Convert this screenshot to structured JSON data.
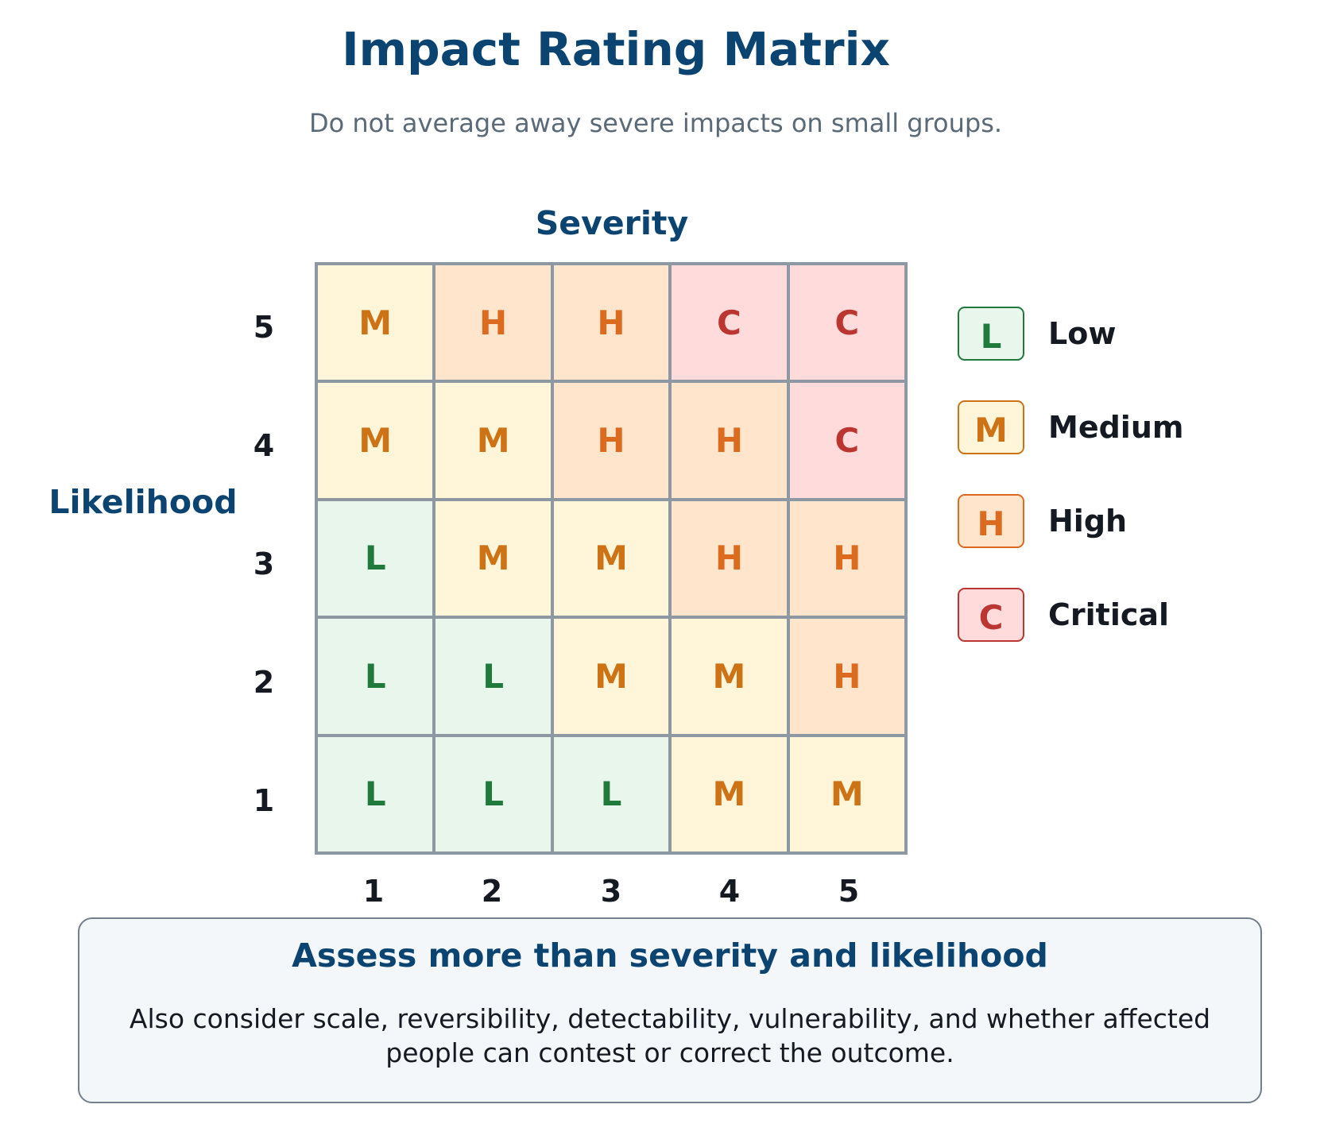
{
  "title": "Impact Rating Matrix",
  "subtitle": "Do not average away severe impacts on small groups.",
  "axes": {
    "x_title": "Severity",
    "y_title": "Likelihood",
    "x_ticks": [
      "1",
      "2",
      "3",
      "4",
      "5"
    ],
    "y_ticks": [
      "5",
      "4",
      "3",
      "2",
      "1"
    ]
  },
  "matrix": [
    [
      "M",
      "H",
      "H",
      "C",
      "C"
    ],
    [
      "M",
      "M",
      "H",
      "H",
      "C"
    ],
    [
      "L",
      "M",
      "M",
      "H",
      "H"
    ],
    [
      "L",
      "L",
      "M",
      "M",
      "H"
    ],
    [
      "L",
      "L",
      "L",
      "M",
      "M"
    ]
  ],
  "legend": [
    {
      "code": "L",
      "label": "Low"
    },
    {
      "code": "M",
      "label": "Medium"
    },
    {
      "code": "H",
      "label": "High"
    },
    {
      "code": "C",
      "label": "Critical"
    }
  ],
  "colors": {
    "L": "#1f7a3c",
    "M": "#cd7316",
    "H": "#dd6b1f",
    "C": "#bb3630",
    "title": "#0b4470"
  },
  "note": {
    "title": "Assess more than severity and likelihood",
    "body": "Also consider scale, reversibility, detectability, vulnerability, and whether affected people can contest or correct the outcome."
  }
}
